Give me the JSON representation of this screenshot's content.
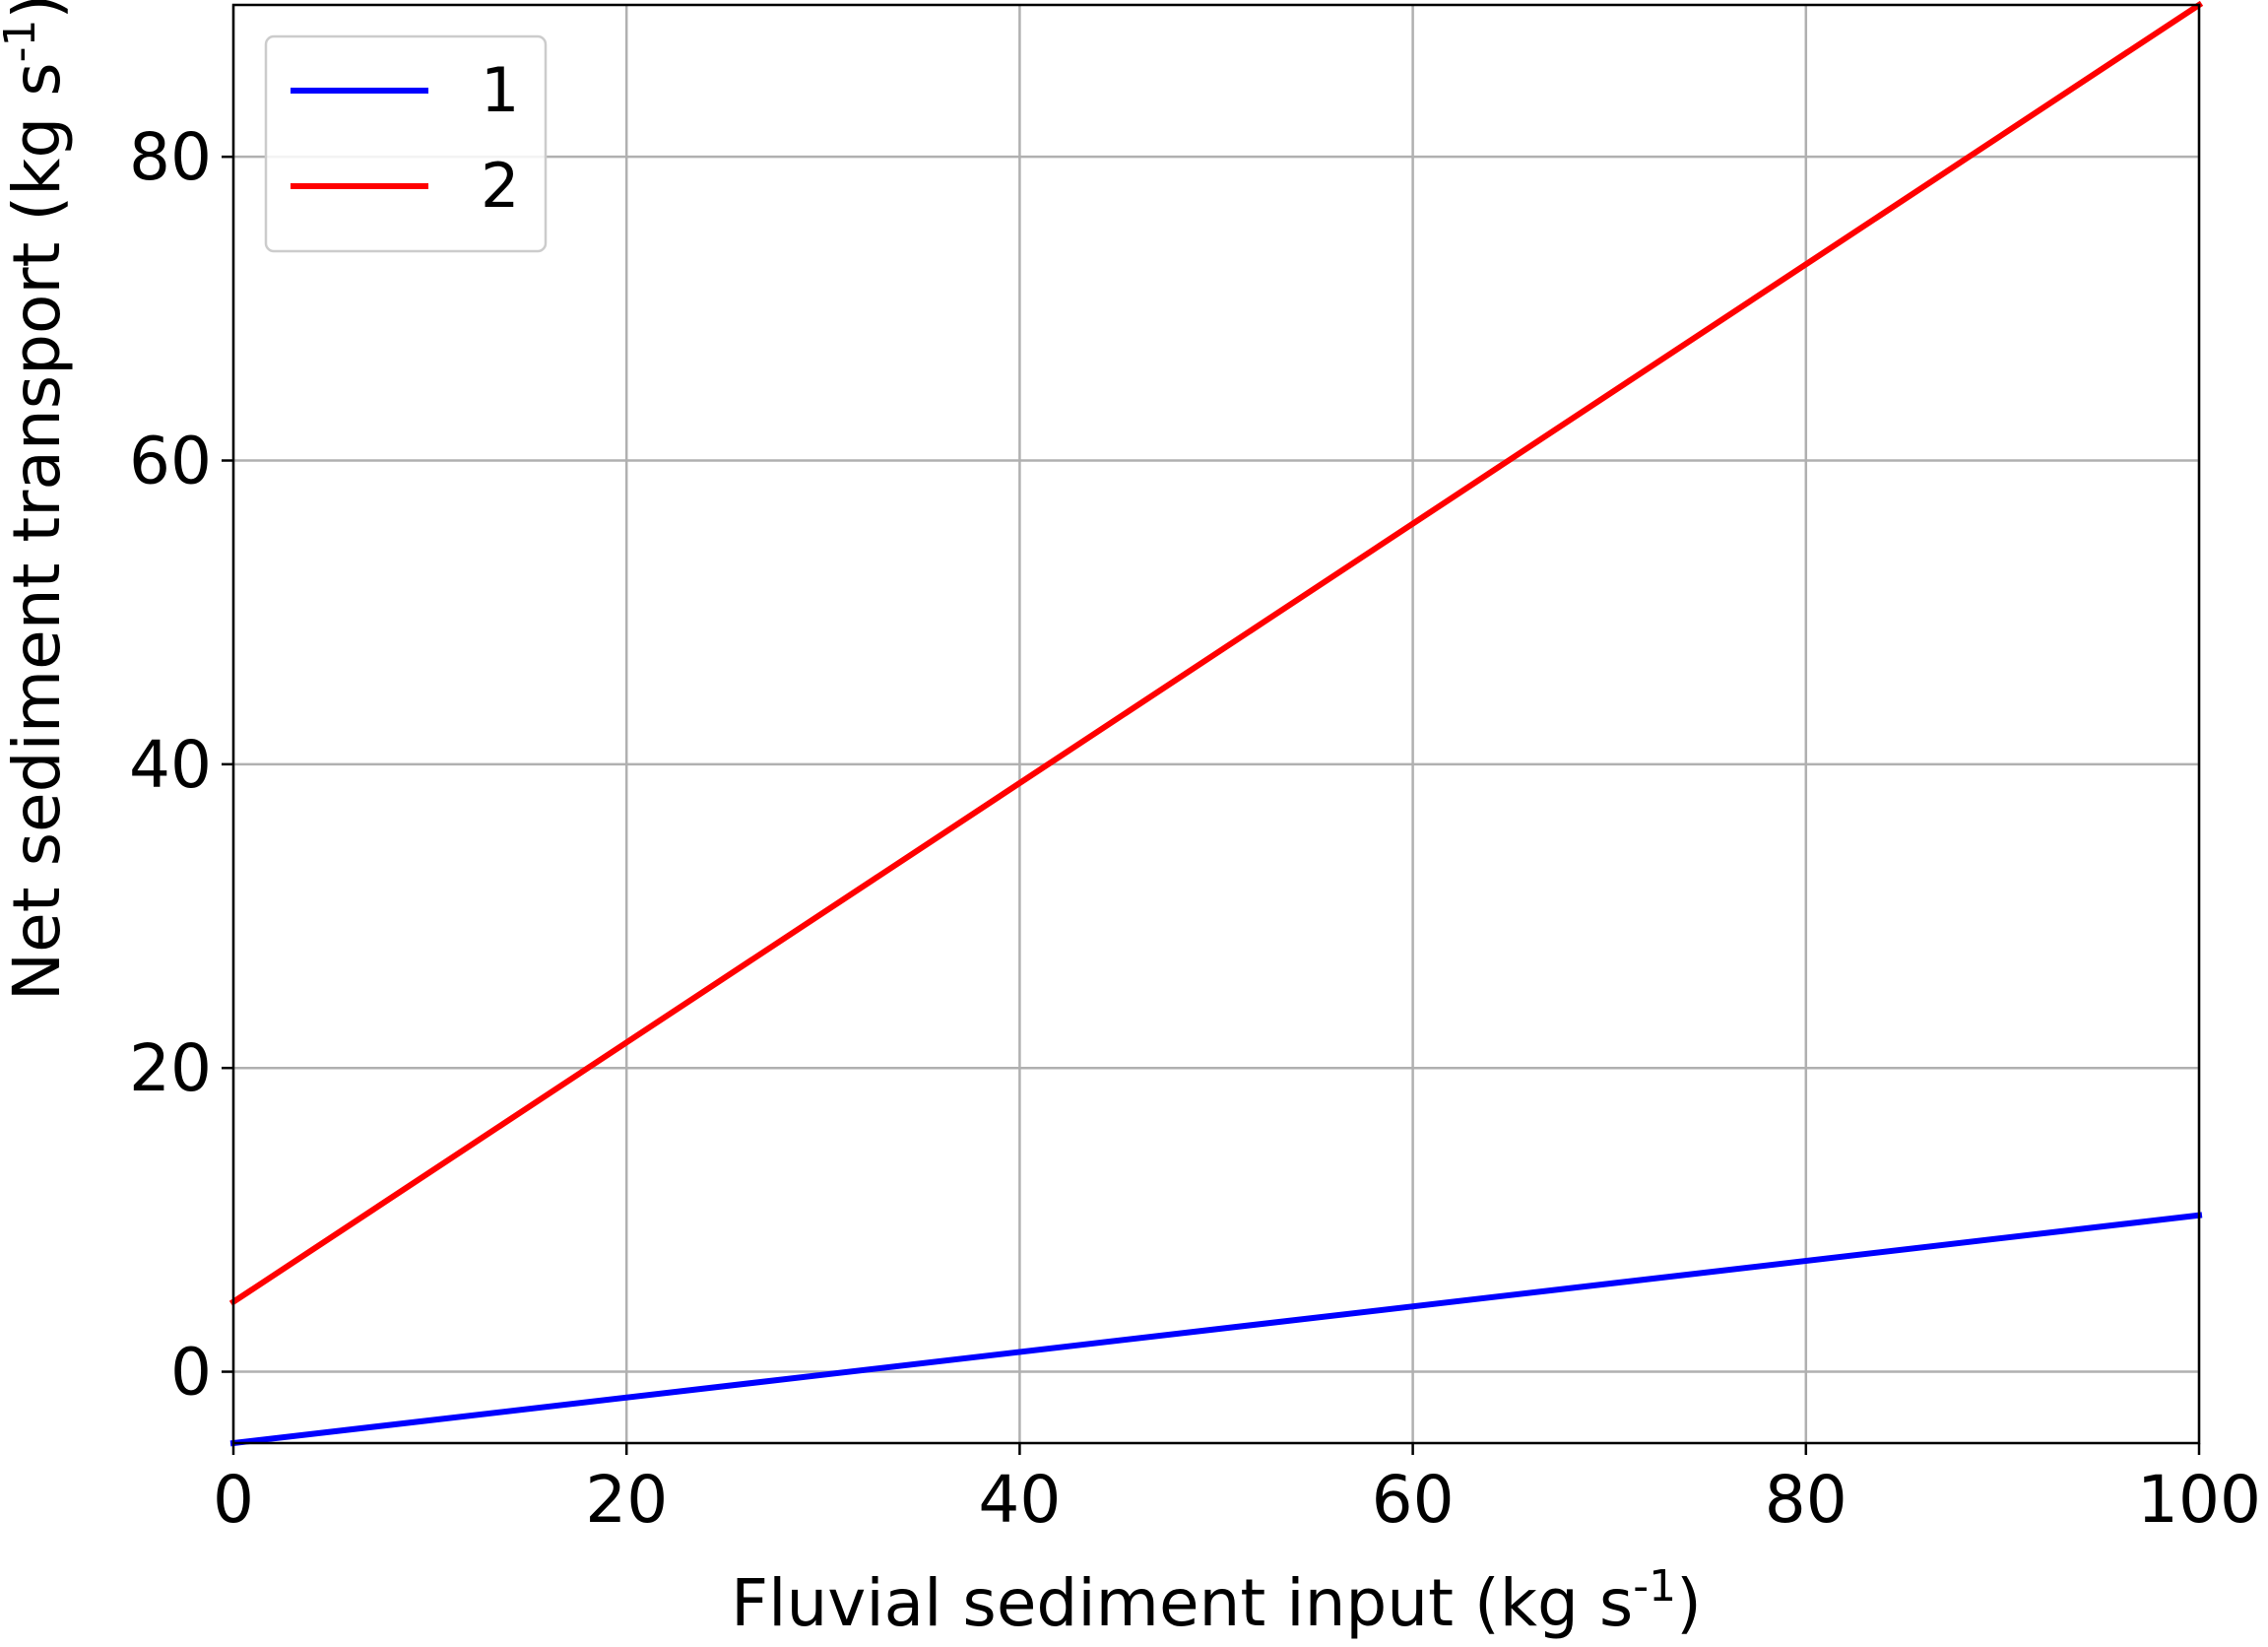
{
  "chart_data": {
    "type": "line",
    "xlabel": {
      "main": "Fluvial sediment input (kg s",
      "sup": "-1",
      "close": ")"
    },
    "ylabel": {
      "main": "Net sediment transport (kg s",
      "sup": "-1",
      "close": ")"
    },
    "xlim": [
      0,
      100
    ],
    "ylim": [
      -4.7,
      90
    ],
    "xticks": [
      0,
      20,
      40,
      60,
      80,
      100
    ],
    "yticks": [
      0,
      20,
      40,
      60,
      80
    ],
    "grid": true,
    "legend_position": "top-left",
    "series": [
      {
        "name": "1",
        "color": "#0000ff",
        "x": [
          0,
          100
        ],
        "y": [
          -4.7,
          10.3
        ]
      },
      {
        "name": "2",
        "color": "#ff0000",
        "x": [
          0,
          100
        ],
        "y": [
          4.6,
          90
        ]
      }
    ]
  }
}
